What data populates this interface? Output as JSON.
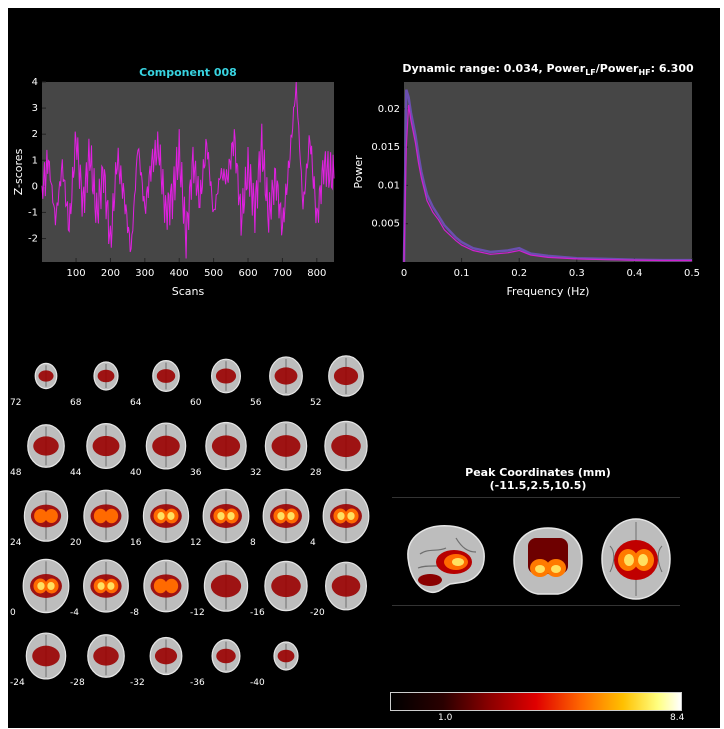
{
  "timecourse": {
    "title": "Component 008",
    "xlabel": "Scans",
    "ylabel": "Z-scores"
  },
  "spectrum": {
    "title_main": "Dynamic range: 0.034, Power",
    "title_sub1": "LF",
    "title_slash": "/Power",
    "title_sub2": "HF",
    "title_tail": ": 6.300",
    "xlabel": "Frequency (Hz)",
    "ylabel": "Power"
  },
  "peak": {
    "title": "Peak Coordinates (mm)",
    "coords": "(-11.5,2.5,10.5)"
  },
  "colorbar": {
    "min_label": "1.0",
    "max_label": "8.4"
  },
  "slices": {
    "labels": [
      "72",
      "68",
      "64",
      "60",
      "56",
      "52",
      "48",
      "44",
      "40",
      "36",
      "32",
      "28",
      "24",
      "20",
      "16",
      "12",
      "8",
      "4",
      "0",
      "-4",
      "-8",
      "-12",
      "-16",
      "-20",
      "-24",
      "-28",
      "-32",
      "-36",
      "-40"
    ]
  },
  "chart_data": [
    {
      "type": "line",
      "title": "Component 008",
      "xlabel": "Scans",
      "ylabel": "Z-scores",
      "xlim": [
        1,
        850
      ],
      "ylim": [
        -2.9,
        4
      ],
      "x_ticks": [
        "100",
        "200",
        "300",
        "400",
        "500",
        "600",
        "700",
        "800"
      ],
      "y_ticks": [
        "-2",
        "-1",
        "0",
        "1",
        "2",
        "3",
        "4"
      ],
      "grid": false,
      "series": [
        {
          "color": "#e020e0",
          "x": [
            1,
            20,
            40,
            60,
            80,
            100,
            120,
            140,
            160,
            180,
            200,
            220,
            240,
            260,
            280,
            300,
            320,
            340,
            360,
            380,
            400,
            420,
            440,
            460,
            480,
            500,
            520,
            540,
            560,
            580,
            600,
            620,
            640,
            660,
            680,
            700,
            720,
            740,
            760,
            780,
            800,
            820,
            850
          ],
          "y": [
            -0.2,
            1.0,
            -1.3,
            0.8,
            -1.6,
            1.9,
            -0.7,
            1.3,
            -1.1,
            0.6,
            -2.2,
            1.1,
            -0.4,
            -2.5,
            1.6,
            -0.9,
            0.9,
            1.5,
            -1.0,
            -0.4,
            1.3,
            -2.0,
            1.0,
            -0.6,
            1.7,
            -1.1,
            0.5,
            0.3,
            1.9,
            -1.3,
            0.7,
            -0.9,
            1.6,
            -1.2,
            0.4,
            -1.6,
            0.9,
            3.9,
            -0.8,
            1.9,
            -1.3,
            0.8,
            0.3
          ]
        }
      ]
    },
    {
      "type": "line",
      "title": "Dynamic range: 0.034, Power LF/Power HF: 6.300",
      "xlabel": "Frequency (Hz)",
      "ylabel": "Power",
      "xlim": [
        0,
        0.5
      ],
      "ylim": [
        0,
        0.0235
      ],
      "x_ticks": [
        "0",
        "0.1",
        "0.2",
        "0.3",
        "0.4",
        "0.5"
      ],
      "y_ticks": [
        "0.005",
        "0.01",
        "0.015",
        "0.02"
      ],
      "grid": false,
      "series": [
        {
          "color": "#d020d0",
          "x": [
            0.0,
            0.004,
            0.008,
            0.012,
            0.016,
            0.02,
            0.025,
            0.03,
            0.035,
            0.04,
            0.05,
            0.06,
            0.07,
            0.08,
            0.09,
            0.1,
            0.12,
            0.15,
            0.18,
            0.2,
            0.22,
            0.25,
            0.3,
            0.35,
            0.4,
            0.45,
            0.5
          ],
          "y": [
            0.0,
            0.015,
            0.0205,
            0.0185,
            0.017,
            0.0155,
            0.013,
            0.011,
            0.0095,
            0.008,
            0.0065,
            0.0055,
            0.0042,
            0.0035,
            0.0028,
            0.0022,
            0.0015,
            0.001,
            0.0012,
            0.0015,
            0.0009,
            0.0006,
            0.0004,
            0.0003,
            0.00025,
            0.0002,
            0.0002
          ]
        },
        {
          "color": "#6a4fb0",
          "x": [
            0.0,
            0.004,
            0.008,
            0.012,
            0.016,
            0.02,
            0.025,
            0.03,
            0.035,
            0.04,
            0.05,
            0.06,
            0.07,
            0.08,
            0.09,
            0.1,
            0.12,
            0.15,
            0.18,
            0.2,
            0.22,
            0.25,
            0.3,
            0.35,
            0.4,
            0.45,
            0.5
          ],
          "y": [
            0.0,
            0.0225,
            0.0215,
            0.0195,
            0.018,
            0.0165,
            0.014,
            0.0118,
            0.0102,
            0.0088,
            0.0072,
            0.006,
            0.0048,
            0.004,
            0.0032,
            0.0026,
            0.0018,
            0.0013,
            0.0015,
            0.0018,
            0.0011,
            0.0008,
            0.0005,
            0.0004,
            0.0003,
            0.00025,
            0.00025
          ]
        }
      ]
    }
  ]
}
